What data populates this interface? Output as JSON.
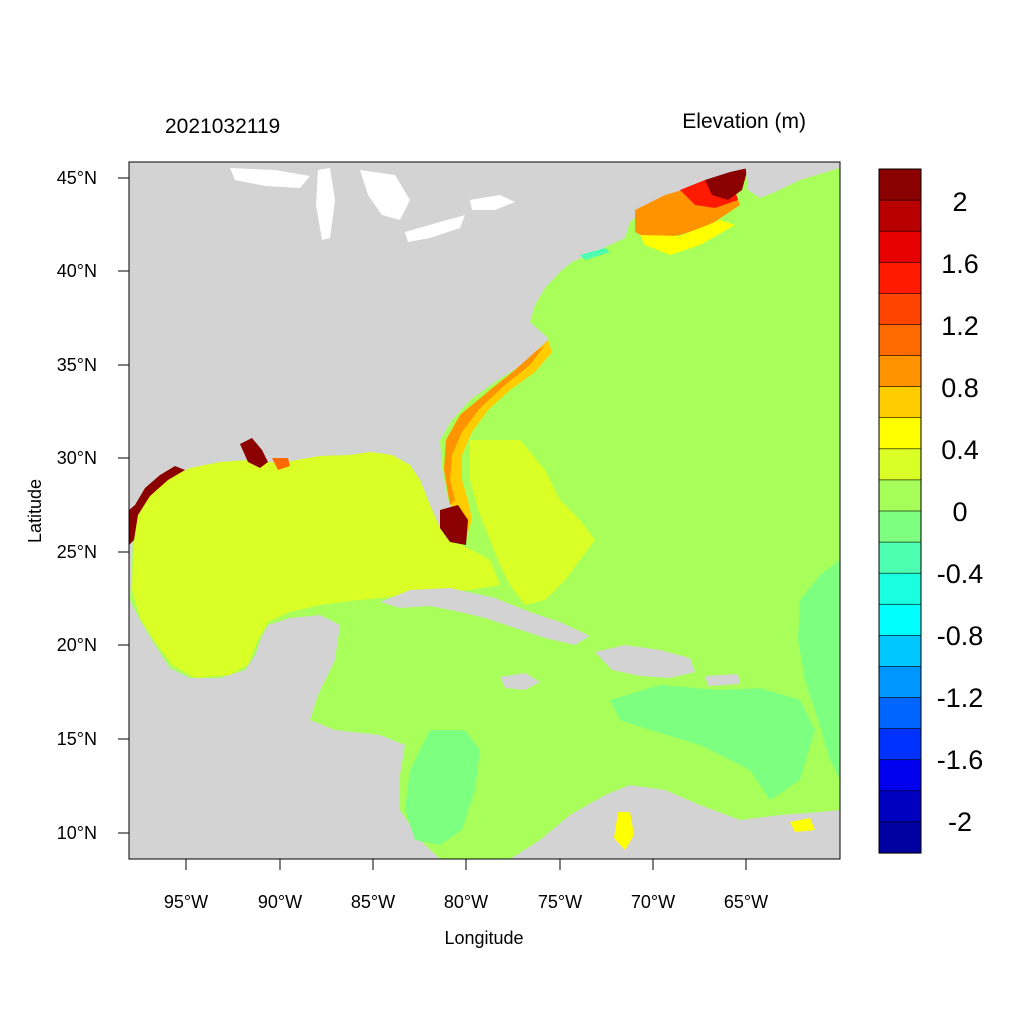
{
  "header": {
    "date_label": "2021032119",
    "variable_label": "Elevation (m)"
  },
  "axes": {
    "xlabel": "Longitude",
    "ylabel": "Latitude",
    "lon_ticks": [
      "95°W",
      "90°W",
      "85°W",
      "80°W",
      "75°W",
      "70°W",
      "65°W"
    ],
    "lat_ticks": [
      "45°N",
      "40°N",
      "35°N",
      "30°N",
      "25°N",
      "20°N",
      "15°N",
      "10°N"
    ]
  },
  "colorbar": {
    "labels": [
      "2",
      "1.6",
      "1.2",
      "0.8",
      "0.4",
      "0",
      "-0.4",
      "-0.8",
      "-1.2",
      "-1.6",
      "-2"
    ],
    "colors": [
      "#8b0000",
      "#b80000",
      "#e60000",
      "#ff1a00",
      "#ff4400",
      "#ff6a00",
      "#ff9400",
      "#ffcc00",
      "#ffff00",
      "#d9ff26",
      "#a6ff59",
      "#7dff80",
      "#4dffb0",
      "#1affe0",
      "#00ffff",
      "#00c8ff",
      "#0096ff",
      "#0064ff",
      "#0032ff",
      "#0000ee",
      "#0000c0",
      "#0000a0"
    ]
  },
  "palette": {
    "land": "#d3d3d3",
    "water_background": "#a8ff5a",
    "gulf": "#d9ff26"
  }
}
